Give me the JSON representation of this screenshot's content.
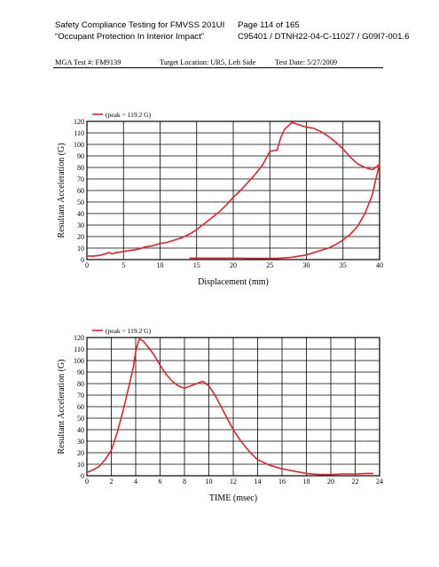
{
  "header": {
    "title_left": "Safety Compliance Testing for FMVSS 201UI",
    "subtitle_left": "“Occupant Protection In Interior Impact”",
    "page": "Page 114 of 165",
    "doc_id": "C95401 / DTNH22-04-C-11027 / G09I7-001.6"
  },
  "test_info": {
    "test_no": "MGA Test #: FM9139",
    "target": "Target Location: UR5, Left Side",
    "date": "Test Date: 5/27/2009"
  },
  "chart_data": [
    {
      "type": "line",
      "title": "",
      "annotation": "(peak = 119.2 G)",
      "xlabel": "Displacement (mm)",
      "ylabel": "Resultant Acceleration (G)",
      "xlim": [
        0,
        40
      ],
      "ylim": [
        0,
        120
      ],
      "xticks": [
        0,
        5,
        10,
        15,
        20,
        25,
        30,
        35,
        40
      ],
      "yticks": [
        0,
        10,
        20,
        30,
        40,
        50,
        60,
        70,
        80,
        90,
        100,
        110,
        120
      ],
      "grid": true,
      "color": "#e8202a",
      "x": [
        0,
        1,
        2,
        3,
        3.5,
        4,
        5,
        6,
        7,
        8,
        9,
        10,
        11,
        12,
        13,
        14,
        15,
        16,
        17,
        18,
        19,
        20,
        21,
        22,
        23,
        24,
        25,
        26,
        26.5,
        27,
        28,
        29,
        30,
        31,
        32,
        33,
        34,
        35,
        36,
        37,
        38,
        39,
        39.5,
        40,
        39.5,
        39,
        38,
        37,
        36,
        35,
        34,
        33,
        32,
        31,
        30,
        29,
        28,
        27,
        26,
        25,
        24,
        23,
        22,
        21,
        20,
        19,
        18,
        17,
        16,
        15,
        14
      ],
      "y": [
        3,
        3,
        4,
        6,
        5,
        6,
        7,
        8,
        9,
        11,
        12,
        14,
        15,
        17,
        19,
        22,
        26,
        31,
        36,
        41,
        47,
        54,
        60,
        67,
        74,
        82,
        94,
        95,
        106,
        113,
        119,
        117,
        115,
        114,
        111,
        107,
        102,
        96,
        89,
        83,
        80,
        78,
        80,
        83,
        70,
        56,
        40,
        29,
        22,
        17,
        13,
        10,
        8,
        6,
        4,
        3,
        2,
        1.5,
        1,
        1,
        1,
        1,
        1,
        1.2,
        1.2,
        1.2,
        1.2,
        1.2,
        1.2,
        1.2,
        1.2
      ]
    },
    {
      "type": "line",
      "title": "",
      "annotation": "(peak = 119.2 G)",
      "xlabel": "TIME (msec)",
      "ylabel": "Resultant Acceleration (G)",
      "xlim": [
        0,
        24
      ],
      "ylim": [
        0,
        120
      ],
      "xticks": [
        0,
        2,
        4,
        6,
        8,
        10,
        12,
        14,
        16,
        18,
        20,
        22,
        24
      ],
      "yticks": [
        0,
        10,
        20,
        30,
        40,
        50,
        60,
        70,
        80,
        90,
        100,
        110,
        120
      ],
      "grid": true,
      "color": "#e8202a",
      "x": [
        0,
        0.5,
        1,
        1.5,
        2,
        2.5,
        3,
        3.5,
        3.8,
        4,
        4.3,
        4.6,
        5,
        5.5,
        6,
        6.5,
        7,
        7.5,
        8,
        8.5,
        9,
        9.5,
        10,
        10.5,
        11,
        11.5,
        12,
        12.5,
        13,
        13.5,
        14,
        15,
        16,
        17,
        18,
        19,
        20,
        21,
        22,
        23,
        23.5
      ],
      "y": [
        3,
        5,
        8,
        14,
        22,
        38,
        58,
        80,
        94,
        108,
        119,
        117,
        112,
        105,
        96,
        88,
        82,
        78,
        76,
        78,
        80,
        82,
        78,
        70,
        60,
        50,
        40,
        32,
        25,
        19,
        14,
        9,
        6,
        4,
        2,
        1,
        1,
        1.5,
        1.5,
        2,
        2
      ]
    }
  ]
}
